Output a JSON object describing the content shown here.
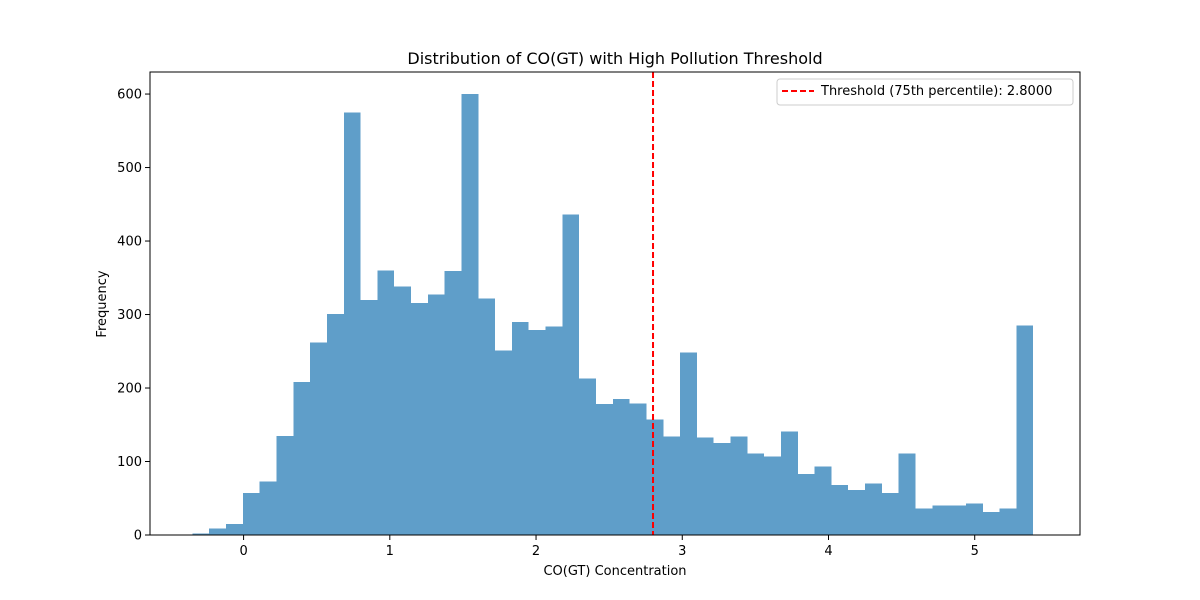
{
  "chart_data": {
    "type": "bar",
    "title": "Distribution of CO(GT) with High Pollution Threshold",
    "xlabel": "CO(GT) Concentration",
    "ylabel": "Frequency",
    "xlim": [
      -0.64,
      5.72
    ],
    "ylim": [
      0,
      630
    ],
    "x_ticks": [
      0,
      1,
      2,
      3,
      4,
      5
    ],
    "y_ticks": [
      0,
      100,
      200,
      300,
      400,
      500,
      600
    ],
    "bin_start": -0.35,
    "bin_width": 0.115,
    "values": [
      2,
      9,
      15,
      57,
      73,
      135,
      208,
      262,
      301,
      575,
      320,
      360,
      338,
      316,
      327,
      359,
      600,
      322,
      251,
      290,
      279,
      284,
      436,
      213,
      178,
      185,
      179,
      157,
      134,
      248,
      133,
      125,
      134,
      111,
      107,
      141,
      83,
      93,
      68,
      61,
      70,
      57,
      111,
      36,
      40,
      40,
      43,
      31,
      36,
      285
    ],
    "bar_color": "#5f9ec9",
    "threshold": {
      "value": 2.8,
      "color": "#ff0000",
      "label": "Threshold (75th percentile): 2.8000"
    },
    "legend_position": "top-right",
    "grid": false
  }
}
